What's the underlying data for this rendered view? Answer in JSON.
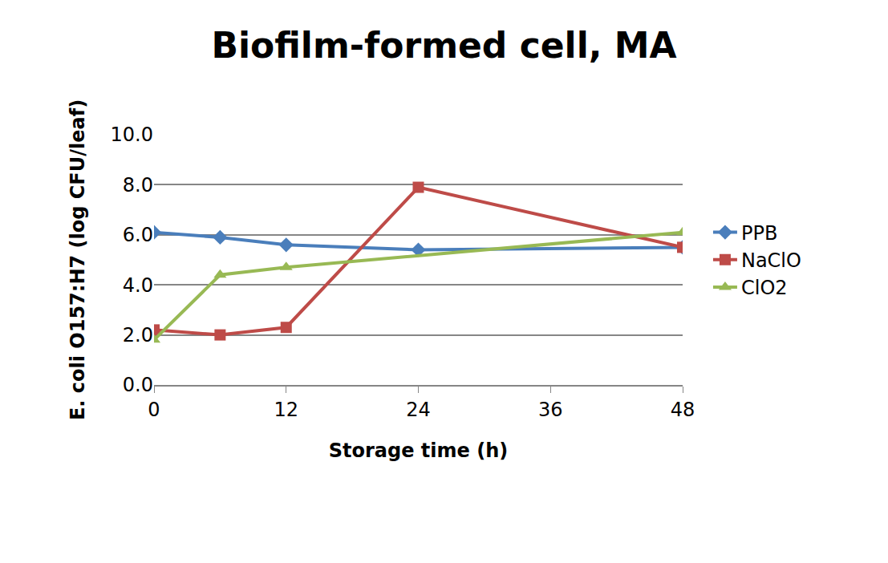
{
  "chart_data": {
    "type": "line",
    "title": "Biofilm-formed cell, MA",
    "x_label": "Storage time (h)",
    "y_label": "E. coli O157:H7 (log CFU/leaf)",
    "x": [
      0,
      6,
      12,
      24,
      48
    ],
    "series": [
      {
        "name": "PPB",
        "color": "#4A7EBB",
        "marker": "diamond",
        "values": [
          6.1,
          5.9,
          5.6,
          5.4,
          5.5
        ]
      },
      {
        "name": "NaClO",
        "color": "#BE4B48",
        "marker": "square",
        "values": [
          2.2,
          2.0,
          2.3,
          7.9,
          5.5
        ]
      },
      {
        "name": "ClO2",
        "color": "#98B954",
        "marker": "triangle-up",
        "values": [
          1.8,
          4.4,
          4.7,
          null,
          6.1
        ]
      }
    ],
    "xlim": [
      0,
      48
    ],
    "xticks": [
      0,
      12,
      24,
      36,
      48
    ],
    "ylim": [
      0,
      10
    ],
    "yticks": [
      {
        "value": 0,
        "label": "0.0"
      },
      {
        "value": 2,
        "label": "2.0"
      },
      {
        "value": 4,
        "label": "4.0"
      },
      {
        "value": 6,
        "label": "6.0"
      },
      {
        "value": 8,
        "label": "8.0"
      },
      {
        "value": 10,
        "label": "10.0"
      }
    ],
    "grid": true,
    "legend": "right"
  }
}
